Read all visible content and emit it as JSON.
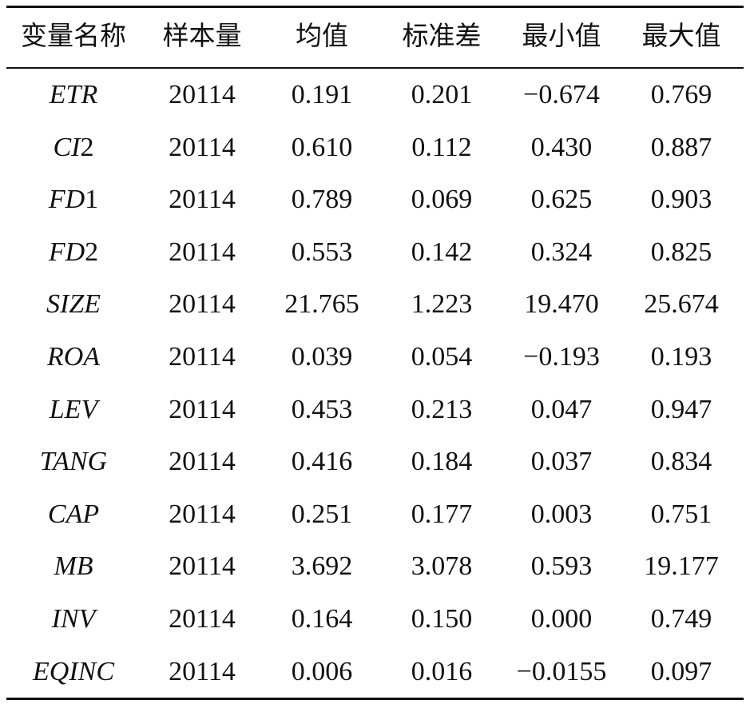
{
  "table": {
    "header": [
      "变量名称",
      "样本量",
      "均值",
      "标准差",
      "最小值",
      "最大值"
    ],
    "rows": [
      [
        "ETR",
        "20114",
        "0.191",
        "0.201",
        "−0.674",
        "0.769"
      ],
      [
        "CI2",
        "20114",
        "0.610",
        "0.112",
        "0.430",
        "0.887"
      ],
      [
        "FD1",
        "20114",
        "0.789",
        "0.069",
        "0.625",
        "0.903"
      ],
      [
        "FD2",
        "20114",
        "0.553",
        "0.142",
        "0.324",
        "0.825"
      ],
      [
        "SIZE",
        "20114",
        "21.765",
        "1.223",
        "19.470",
        "25.674"
      ],
      [
        "ROA",
        "20114",
        "0.039",
        "0.054",
        "−0.193",
        "0.193"
      ],
      [
        "LEV",
        "20114",
        "0.453",
        "0.213",
        "0.047",
        "0.947"
      ],
      [
        "TANG",
        "20114",
        "0.416",
        "0.184",
        "0.037",
        "0.834"
      ],
      [
        "CAP",
        "20114",
        "0.251",
        "0.177",
        "0.003",
        "0.751"
      ],
      [
        "MB",
        "20114",
        "3.692",
        "3.078",
        "0.593",
        "19.177"
      ],
      [
        "INV",
        "20114",
        "0.164",
        "0.150",
        "0.000",
        "0.749"
      ],
      [
        "EQINC",
        "20114",
        "0.006",
        "0.016",
        "−0.0155",
        "0.097"
      ]
    ]
  }
}
